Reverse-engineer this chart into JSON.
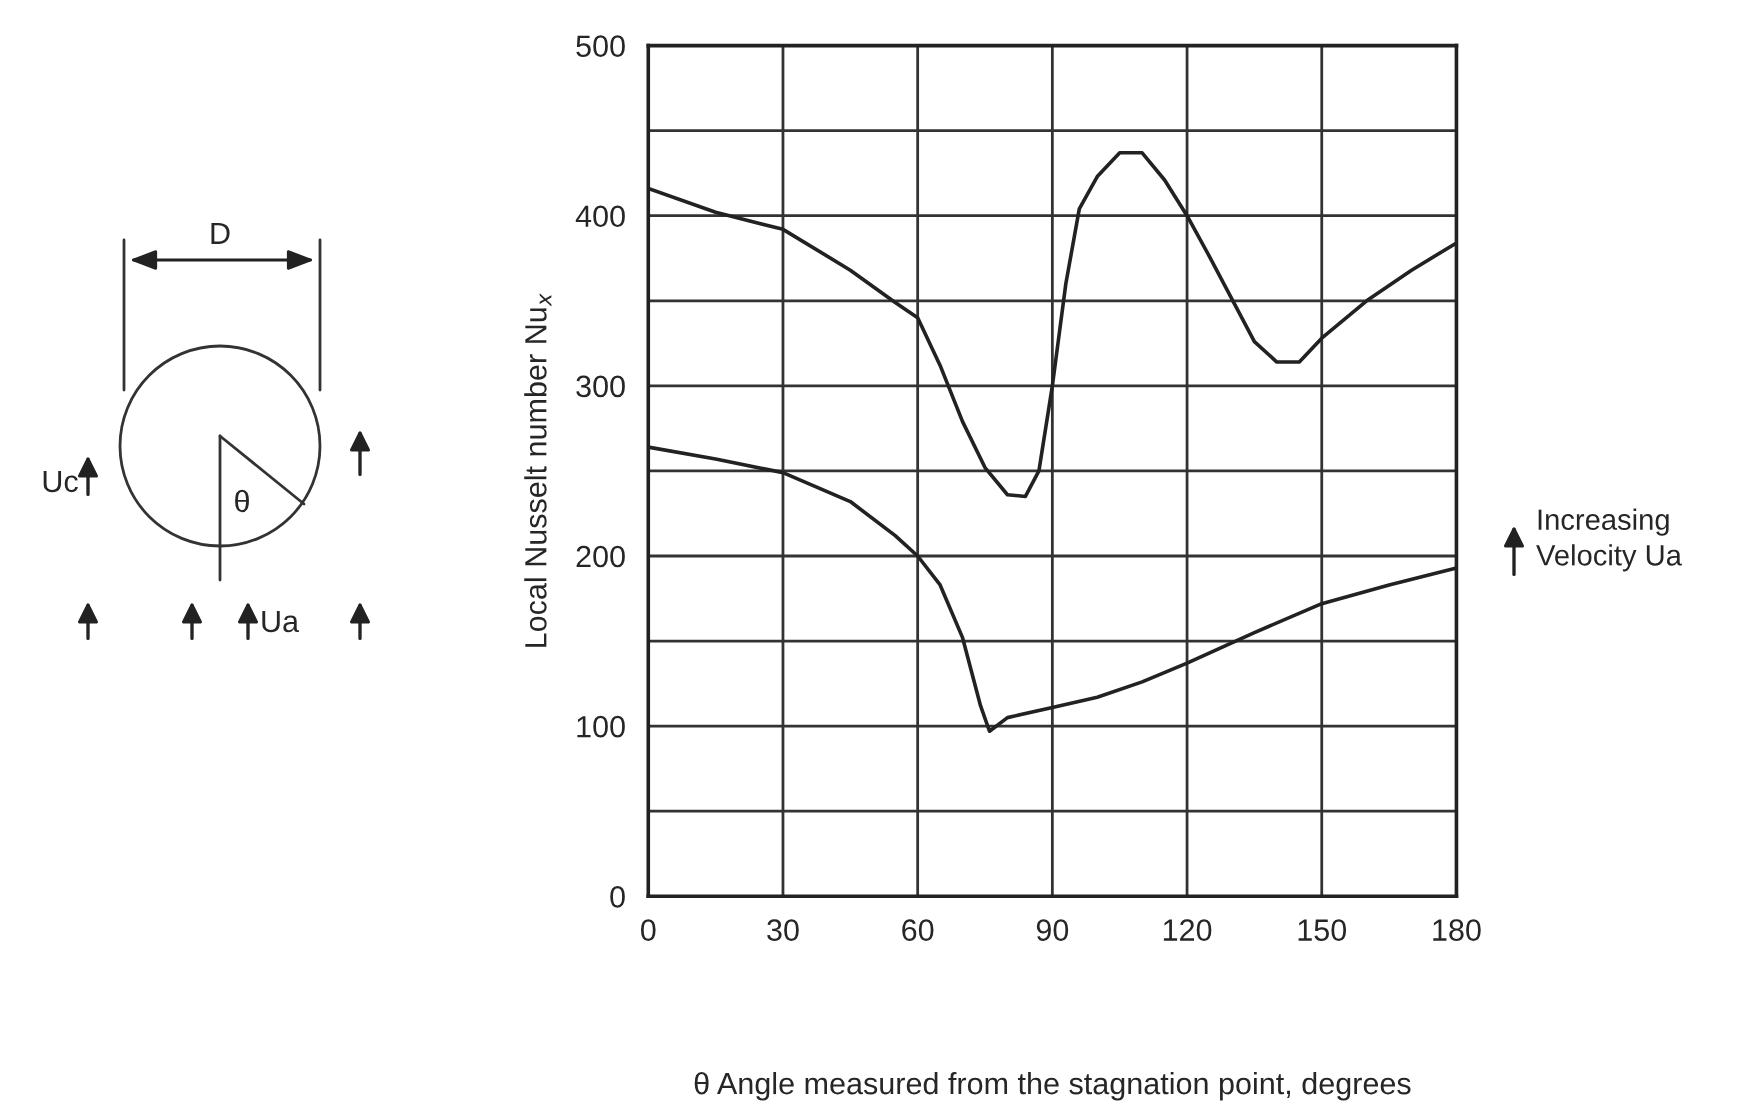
{
  "chart_data": {
    "type": "line",
    "xlabel": "θ Angle measured from the stagnation point, degrees",
    "ylabel": "Local Nusselt number Nu$_{x}$",
    "xlim": [
      0,
      180
    ],
    "xticks": [
      0,
      30,
      60,
      90,
      120,
      150,
      180
    ],
    "ylim": [
      0,
      500
    ],
    "yticks": [
      0,
      100,
      200,
      300,
      400,
      500
    ],
    "grid": true,
    "marker": "none",
    "line_style": "solid",
    "series": [
      {
        "color": "#222222",
        "x": [
          0,
          15,
          30,
          45,
          55,
          60,
          65,
          70,
          75,
          80,
          84,
          87,
          90,
          93,
          96,
          100,
          105,
          110,
          115,
          120,
          125,
          130,
          135,
          140,
          145,
          150,
          160,
          170,
          180
        ],
        "values": [
          416,
          402,
          392,
          368,
          349,
          340,
          312,
          279,
          252,
          236,
          235,
          250,
          300,
          360,
          404,
          423,
          437,
          437,
          421,
          400,
          376,
          351,
          326,
          314,
          314,
          328,
          350,
          368,
          384
        ]
      },
      {
        "color": "#222222",
        "x": [
          0,
          15,
          30,
          45,
          55,
          60,
          65,
          70,
          74,
          76,
          80,
          90,
          100,
          110,
          120,
          135,
          150,
          165,
          180
        ],
        "values": [
          264,
          257,
          249,
          232,
          212,
          200,
          183,
          152,
          112,
          97,
          105,
          111,
          117,
          126,
          137,
          155,
          172,
          183,
          193
        ]
      }
    ],
    "annotations": [
      "D",
      "Uc",
      "θ",
      "Ua",
      "Increasing\nVelocity Ua"
    ]
  }
}
